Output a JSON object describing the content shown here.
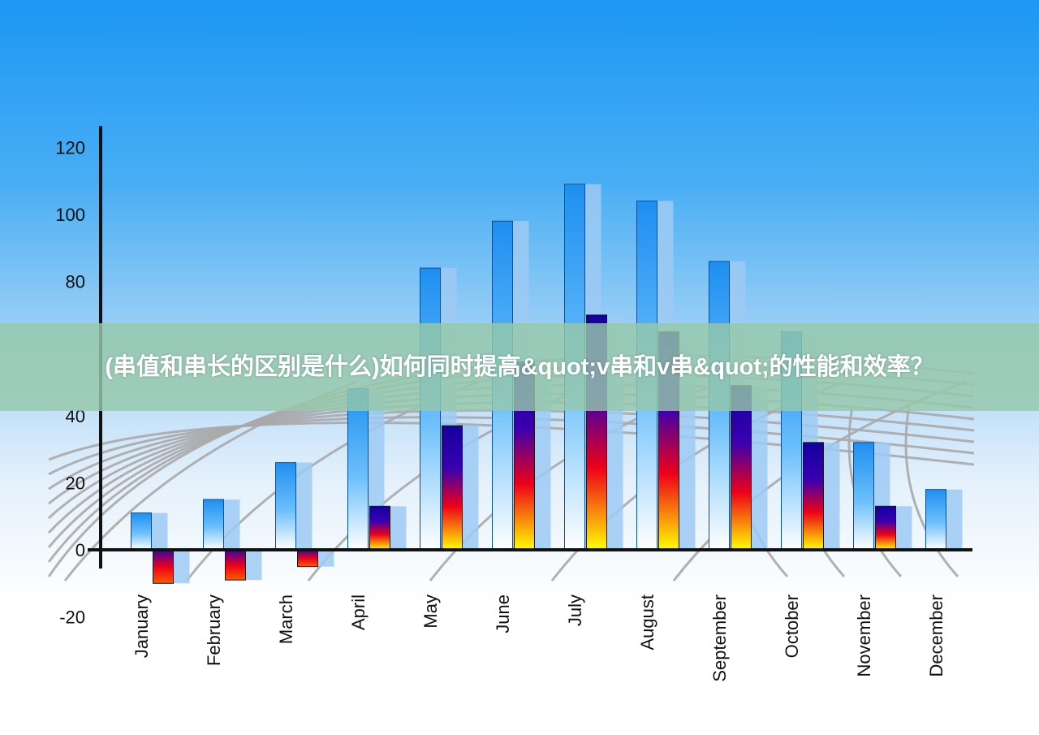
{
  "banner": {
    "text": "(串值和串长的区别是什么)如何同时提高&quot;v串和v串&quot;的性能和效率？"
  },
  "chart_data": {
    "type": "bar",
    "categories": [
      "January",
      "February",
      "March",
      "April",
      "May",
      "June",
      "July",
      "August",
      "September",
      "October",
      "November",
      "December"
    ],
    "series": [
      {
        "values": [
          11,
          15,
          26,
          48,
          84,
          98,
          109,
          104,
          86,
          65,
          32,
          18
        ],
        "style": "blue"
      },
      {
        "values": [
          -10,
          -9,
          -5,
          13,
          37,
          56,
          70,
          65,
          49,
          32,
          13,
          null
        ],
        "style": "heat"
      }
    ],
    "ylim": [
      -20,
      120
    ],
    "yticks": [
      -20,
      0,
      20,
      40,
      80,
      100,
      120
    ],
    "colors": {
      "blue": "#1e90f0",
      "heat_top": "#1a00a8",
      "heat_mid": "#e8001a",
      "heat_bottom": "#ffff00"
    }
  }
}
